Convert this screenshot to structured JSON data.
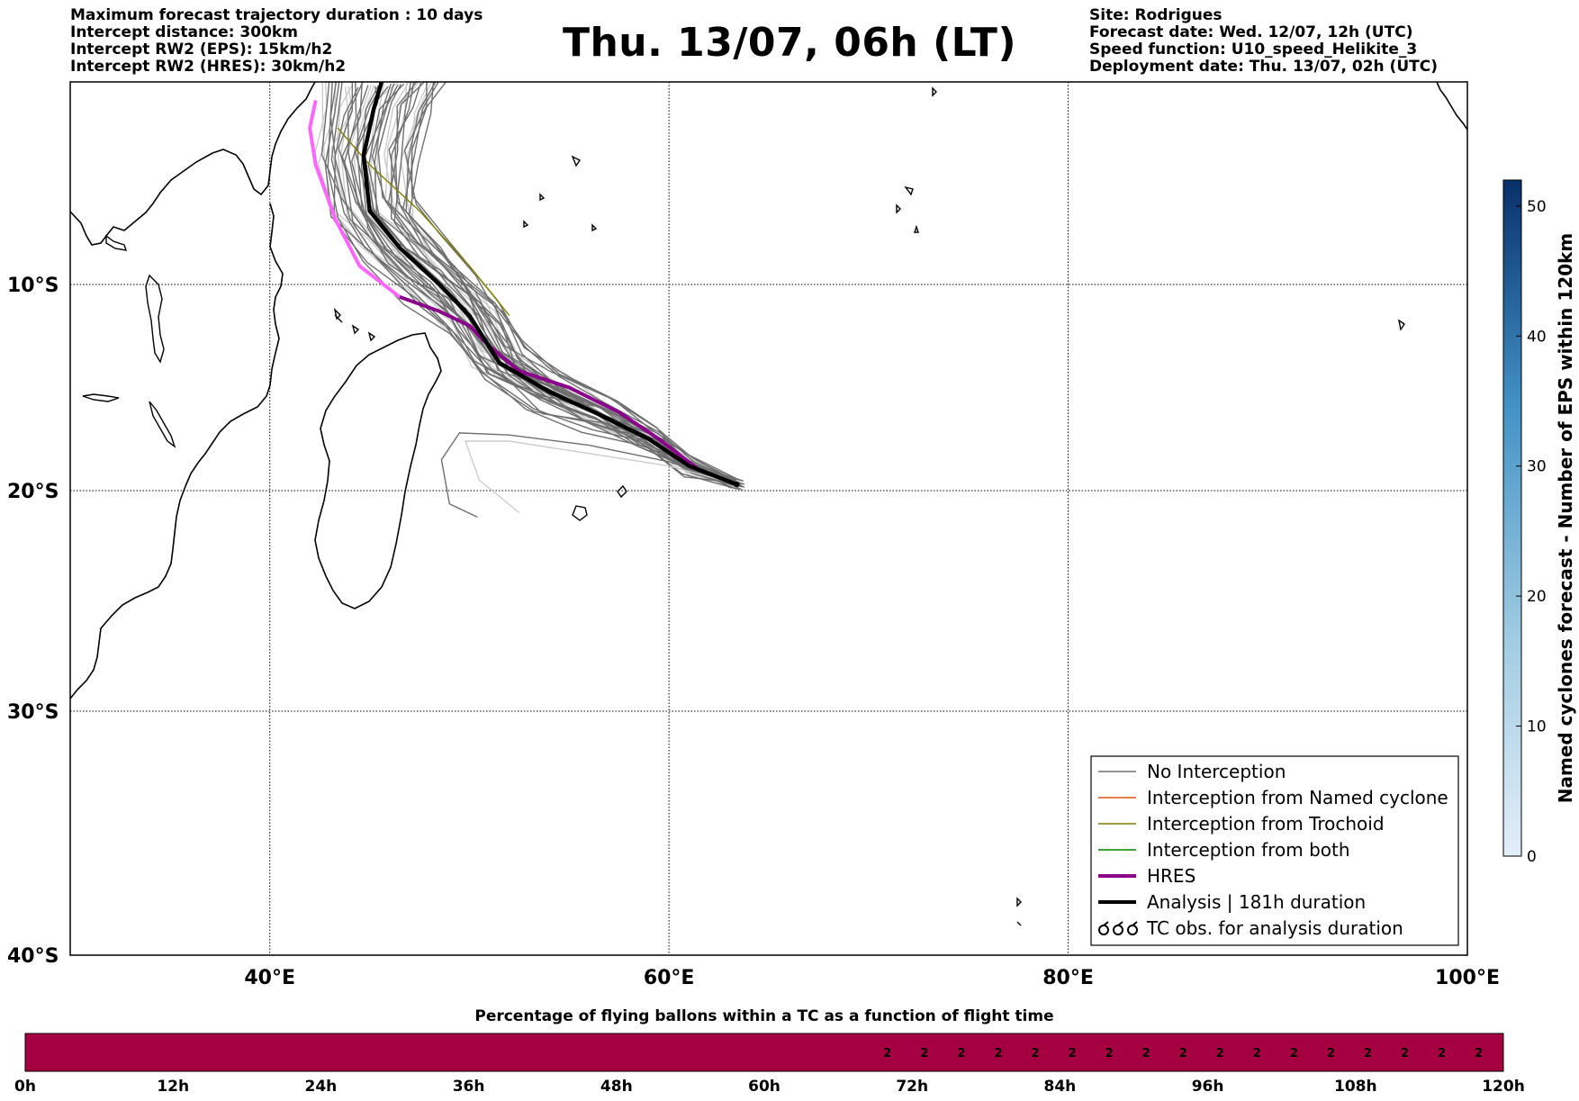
{
  "header": {
    "left_lines": [
      "Maximum forecast trajectory duration : 10 days",
      "Intercept distance: 300km",
      "Intercept RW2 (EPS):  15km/h2",
      "Intercept RW2 (HRES): 30km/h2"
    ],
    "right_lines": [
      "Site: Rodrigues",
      "Forecast date: Wed. 12/07, 12h (UTC)",
      "Speed function: U10_speed_Helikite_3",
      "Deployment date: Thu. 13/07, 02h (UTC)"
    ],
    "title": "Thu. 13/07, 06h (LT)"
  },
  "map": {
    "lon_range": [
      30,
      100
    ],
    "lat_range": [
      -40,
      1
    ],
    "lat_labels": [
      {
        "lat": -10,
        "label": "10°S"
      },
      {
        "lat": -20,
        "label": "20°S"
      },
      {
        "lat": -30,
        "label": "30°S"
      },
      {
        "lat": -40,
        "label": "40°S"
      }
    ],
    "lon_labels": [
      {
        "lon": 40,
        "label": "40°E"
      },
      {
        "lon": 60,
        "label": "60°E"
      },
      {
        "lon": 80,
        "label": "80°E"
      },
      {
        "lon": 100,
        "label": "100°E"
      }
    ],
    "launch_site": {
      "lon": 63.4,
      "lat": -19.7
    },
    "hres_track": [
      [
        63.4,
        -19.7
      ],
      [
        61.5,
        -19.0
      ],
      [
        59.5,
        -17.5
      ],
      [
        57.5,
        -16.2
      ],
      [
        55.0,
        -15.0
      ],
      [
        52.5,
        -14.2
      ],
      [
        51.0,
        -13.0
      ],
      [
        50.0,
        -12.0
      ],
      [
        48.5,
        -11.3
      ],
      [
        46.5,
        -10.6
      ],
      [
        44.5,
        -9.0
      ],
      [
        43.3,
        -6.5
      ],
      [
        42.3,
        -3.5
      ],
      [
        42.0,
        -1.5
      ],
      [
        42.3,
        0.0
      ]
    ],
    "analysis_track": [
      [
        63.4,
        -19.7
      ],
      [
        61.0,
        -18.8
      ],
      [
        59.0,
        -17.5
      ],
      [
        56.5,
        -16.3
      ],
      [
        54.0,
        -15.2
      ],
      [
        51.5,
        -13.8
      ],
      [
        50.0,
        -11.5
      ],
      [
        48.5,
        -10.0
      ],
      [
        46.5,
        -8.0
      ],
      [
        45.0,
        -6.0
      ],
      [
        44.7,
        -3.0
      ],
      [
        45.2,
        -0.5
      ],
      [
        45.6,
        1.0
      ]
    ],
    "colors": {
      "no_interception": "#6f6f6f",
      "named_cyclone": "#e0521a",
      "trochoid": "#7f7f00",
      "both": "#008000",
      "hres": "#8b008b",
      "analysis": "#000000",
      "hres_early": "#ff66ff",
      "ensemble_light": "#cccccc"
    }
  },
  "legend": {
    "items": [
      {
        "label": "No Interception",
        "color": "#6f6f6f",
        "width": 1.5
      },
      {
        "label": "Interception from Named cyclone",
        "color": "#e0521a",
        "width": 1.5
      },
      {
        "label": "Interception from Trochoid",
        "color": "#7f7f00",
        "width": 1.5
      },
      {
        "label": "Interception from both",
        "color": "#008000",
        "width": 1.5
      },
      {
        "label": "HRES",
        "color": "#8b008b",
        "width": 4
      },
      {
        "label": "Analysis | 181h duration",
        "color": "#000000",
        "width": 4
      },
      {
        "label": "TC obs. for analysis duration",
        "symbol": "tc-icon",
        "color": "#000000"
      }
    ]
  },
  "colorbar": {
    "title": "Named cyclones forecast - Number of EPS within 120km",
    "min": 0,
    "max": 52,
    "ticks": [
      0,
      10,
      20,
      30,
      40,
      50
    ],
    "colors": [
      "#e3eef8",
      "#9ecae1",
      "#4292c6",
      "#08306b"
    ]
  },
  "timebar": {
    "title": "Percentage of flying ballons within a TC as a function of flight time",
    "max_hours": 120,
    "tick_labels": [
      "0h",
      "12h",
      "24h",
      "36h",
      "48h",
      "60h",
      "72h",
      "84h",
      "96h",
      "108h",
      "120h"
    ],
    "color": "#a50040",
    "marked_hours": [
      70,
      73,
      76,
      79,
      82,
      85,
      88,
      91,
      94,
      97,
      100,
      103,
      106,
      109,
      112,
      115,
      118
    ],
    "marked_value": "2"
  }
}
